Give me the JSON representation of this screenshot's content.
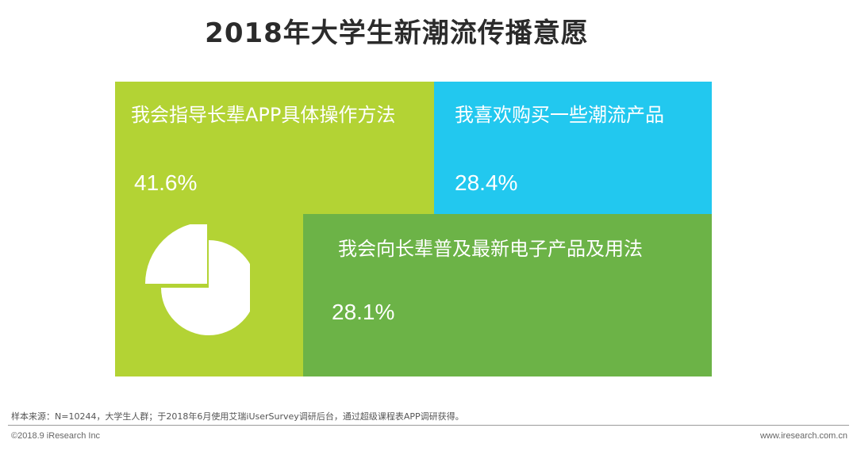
{
  "title": "2018年大学生新潮流传播意愿",
  "chart_data": {
    "type": "treemap",
    "title": "2018年大学生新潮流传播意愿",
    "unit": "%",
    "items": [
      {
        "label": "我会指导长辈APP具体操作方法",
        "value": 41.6,
        "value_text": "41.6%",
        "color": "#b3d334"
      },
      {
        "label": "我喜欢购买一些潮流产品",
        "value": 28.4,
        "value_text": "28.4%",
        "color": "#22c8ef"
      },
      {
        "label": "我会向长辈普及最新电子产品及用法",
        "value": 28.1,
        "value_text": "28.1%",
        "color": "#6cb347"
      }
    ]
  },
  "footer": {
    "note": "样本来源：N=10244，大学生人群；于2018年6月使用艾瑞iUserSurvey调研后台，通过超级课程表APP调研获得。",
    "copyright": "©2018.9 iResearch Inc",
    "site": "www.iresearch.com.cn"
  },
  "icons": {
    "pie": "pie-chart-icon"
  }
}
